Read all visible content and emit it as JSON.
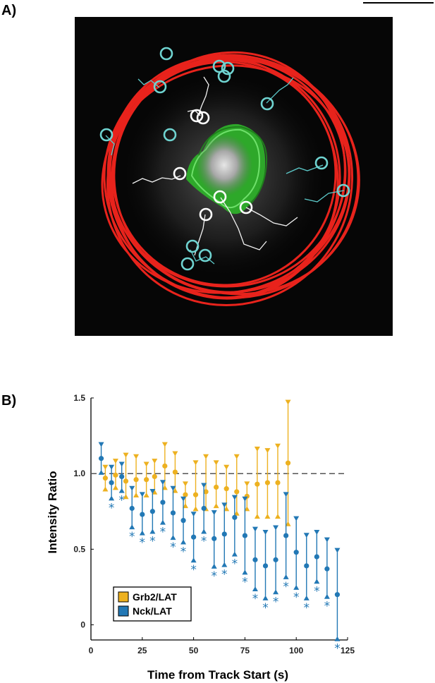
{
  "panel_a": {
    "label": "A)"
  },
  "panel_b": {
    "label": "B)"
  },
  "colors": {
    "grb2": "#EDB120",
    "nck": "#2278B5",
    "reference": "#555555"
  },
  "chart_data": {
    "type": "scatter",
    "title": "",
    "xlabel": "Time from Track Start (s)",
    "ylabel": "Intensity Ratio",
    "xlim": [
      0,
      125
    ],
    "ylim": [
      -0.1,
      1.5
    ],
    "xticks": [
      0,
      25,
      50,
      75,
      100,
      125
    ],
    "yticks": [
      0,
      0.5,
      1.0,
      1.5
    ],
    "ytick_labels": [
      "0",
      "0.5",
      "1.0",
      "1.5"
    ],
    "reference_line": 1.0,
    "legend_position": "bottom-left",
    "significance_marker": "*",
    "series": [
      {
        "name": "Grb2/LAT",
        "color": "#EDB120",
        "points": [
          {
            "x": 7,
            "y": 0.97,
            "low": 0.91,
            "high": 1.03
          },
          {
            "x": 12,
            "y": 0.99,
            "low": 0.92,
            "high": 1.07
          },
          {
            "x": 17,
            "y": 0.95,
            "low": 0.86,
            "high": 1.11
          },
          {
            "x": 22,
            "y": 0.96,
            "low": 0.87,
            "high": 1.1
          },
          {
            "x": 27,
            "y": 0.96,
            "low": 0.87,
            "high": 1.05
          },
          {
            "x": 31,
            "y": 0.98,
            "low": 0.89,
            "high": 1.07
          },
          {
            "x": 36,
            "y": 1.05,
            "low": 0.92,
            "high": 1.18
          },
          {
            "x": 41,
            "y": 1.01,
            "low": 0.9,
            "high": 1.12
          },
          {
            "x": 46,
            "y": 0.86,
            "low": 0.8,
            "high": 0.92
          },
          {
            "x": 51,
            "y": 0.86,
            "low": 0.78,
            "high": 1.06
          },
          {
            "x": 56,
            "y": 0.88,
            "low": 0.78,
            "high": 1.1
          },
          {
            "x": 61,
            "y": 0.91,
            "low": 0.8,
            "high": 1.06
          },
          {
            "x": 66,
            "y": 0.9,
            "low": 0.78,
            "high": 1.03
          },
          {
            "x": 71,
            "y": 0.88,
            "low": 0.75,
            "high": 1.1
          },
          {
            "x": 76,
            "y": 0.85,
            "low": 0.78,
            "high": 0.92
          },
          {
            "x": 81,
            "y": 0.93,
            "low": 0.73,
            "high": 1.15
          },
          {
            "x": 86,
            "y": 0.94,
            "low": 0.73,
            "high": 1.14
          },
          {
            "x": 91,
            "y": 0.94,
            "low": 0.73,
            "high": 1.17
          },
          {
            "x": 96,
            "y": 1.07,
            "low": 0.68,
            "high": 1.46
          }
        ]
      },
      {
        "name": "Nck/LAT",
        "color": "#2278B5",
        "points": [
          {
            "x": 5,
            "y": 1.1,
            "low": 1.02,
            "high": 1.18,
            "sig": false
          },
          {
            "x": 10,
            "y": 0.94,
            "low": 0.85,
            "high": 1.03,
            "sig": true
          },
          {
            "x": 15,
            "y": 0.98,
            "low": 0.9,
            "high": 1.05,
            "sig": true
          },
          {
            "x": 20,
            "y": 0.77,
            "low": 0.66,
            "high": 0.89,
            "sig": true
          },
          {
            "x": 25,
            "y": 0.73,
            "low": 0.62,
            "high": 0.85,
            "sig": true
          },
          {
            "x": 30,
            "y": 0.75,
            "low": 0.63,
            "high": 0.87,
            "sig": true
          },
          {
            "x": 35,
            "y": 0.81,
            "low": 0.69,
            "high": 0.93,
            "sig": true
          },
          {
            "x": 40,
            "y": 0.74,
            "low": 0.59,
            "high": 0.89,
            "sig": true
          },
          {
            "x": 45,
            "y": 0.69,
            "low": 0.56,
            "high": 0.82,
            "sig": true
          },
          {
            "x": 50,
            "y": 0.58,
            "low": 0.44,
            "high": 0.72,
            "sig": true
          },
          {
            "x": 55,
            "y": 0.77,
            "low": 0.63,
            "high": 0.91,
            "sig": true
          },
          {
            "x": 60,
            "y": 0.57,
            "low": 0.4,
            "high": 0.73,
            "sig": true
          },
          {
            "x": 65,
            "y": 0.6,
            "low": 0.41,
            "high": 0.78,
            "sig": true
          },
          {
            "x": 70,
            "y": 0.71,
            "low": 0.48,
            "high": 0.83,
            "sig": true
          },
          {
            "x": 75,
            "y": 0.59,
            "low": 0.36,
            "high": 0.82,
            "sig": true
          },
          {
            "x": 80,
            "y": 0.43,
            "low": 0.25,
            "high": 0.62,
            "sig": true
          },
          {
            "x": 85,
            "y": 0.39,
            "low": 0.19,
            "high": 0.6,
            "sig": true
          },
          {
            "x": 90,
            "y": 0.43,
            "low": 0.23,
            "high": 0.63,
            "sig": true
          },
          {
            "x": 95,
            "y": 0.59,
            "low": 0.33,
            "high": 0.85,
            "sig": true
          },
          {
            "x": 100,
            "y": 0.48,
            "low": 0.26,
            "high": 0.69,
            "sig": true
          },
          {
            "x": 105,
            "y": 0.39,
            "low": 0.19,
            "high": 0.58,
            "sig": true
          },
          {
            "x": 110,
            "y": 0.45,
            "low": 0.3,
            "high": 0.6,
            "sig": true
          },
          {
            "x": 115,
            "y": 0.37,
            "low": 0.2,
            "high": 0.55,
            "sig": true
          },
          {
            "x": 120,
            "y": 0.2,
            "low": -0.08,
            "high": 0.48,
            "sig": true
          }
        ]
      }
    ]
  }
}
